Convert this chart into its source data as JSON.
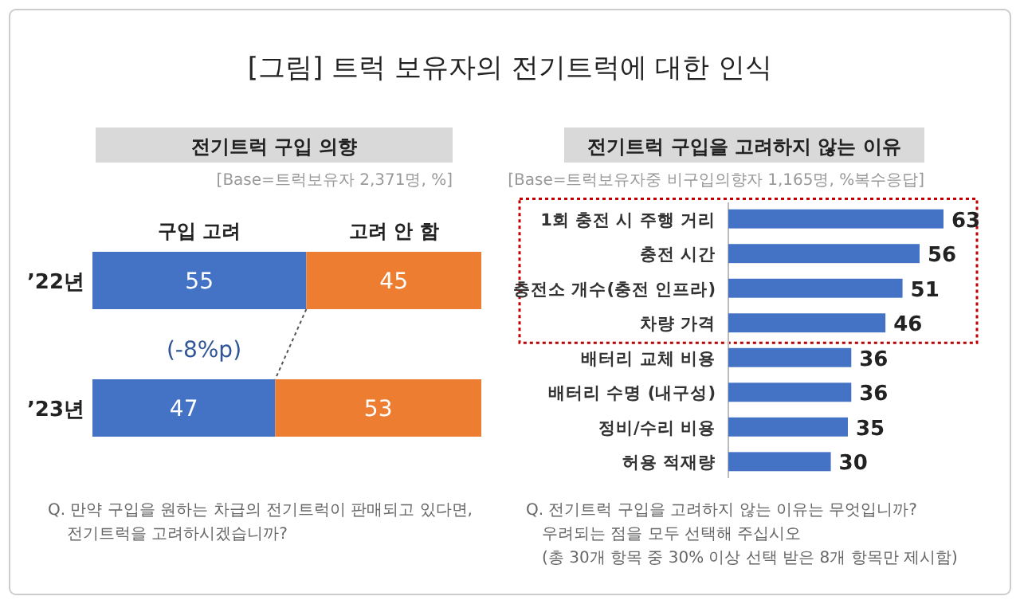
{
  "chart_data": [
    {
      "type": "bar",
      "title": "[그림] 트럭 보유자의 전기트럭에 대한 인식",
      "subtitle": "전기트럭 구입 의향",
      "orientation": "horizontal",
      "stacked": true,
      "categories": [
        "’22년",
        "’23년"
      ],
      "data_labels": true,
      "series": [
        {
          "name": "구입 고려",
          "color": "#4472c4",
          "values": [
            55,
            47
          ]
        },
        {
          "name": "고려 안 함",
          "color": "#ed7d31",
          "values": [
            45,
            53
          ]
        }
      ],
      "annotations": [
        "[Base=트럭보유자 2,371명, %]",
        "(-8%p)",
        "Q. 만약 구입을 원하는 차급의 전기트럭이 판매되고 있다면,",
        "전기트럭을 고려하시겠습니까?"
      ]
    },
    {
      "type": "bar",
      "title": "전기트럭 구입을 고려하지 않는 이유",
      "orientation": "horizontal",
      "categories": [
        "1회 충전 시 주행 거리",
        "충전 시간",
        "충전소 개수(충전 인프라)",
        "차량 가격",
        "배터리 교체 비용",
        "배터리 수명 (내구성)",
        "정비/수리 비용",
        "허용 적재량"
      ],
      "values": [
        63,
        56,
        51,
        46,
        36,
        36,
        35,
        30
      ],
      "color": "#4472c4",
      "data_labels": true,
      "annotations": [
        "[Base=트럭보유자중 비구입의향자 1,165명, %복수응답]",
        "Q. 전기트럭 구입을 고려하지 않는 이유는 무엇입니까?",
        "우려되는 점을 모두 선택해 주십시오",
        "(총 30개 항목 중 30% 이상 선택 받은 8개 항목만 제시함)"
      ]
    }
  ]
}
